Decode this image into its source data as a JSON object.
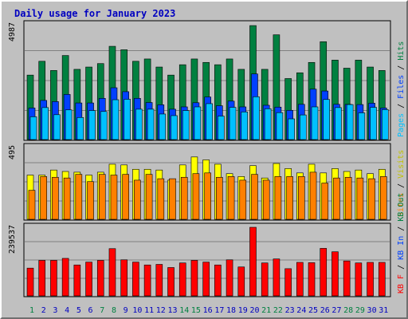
{
  "page": {
    "title": "Daily usage for January 2023"
  },
  "colors": {
    "pages": "#00c0ff",
    "files": "#0040ff",
    "hits": "#008040",
    "sites": "#ff8000",
    "visits": "#ffff00",
    "kb": "#ff0000",
    "label_pages": "#00c0ff",
    "label_files": "#0040ff",
    "label_hits": "#008040",
    "label_sites": "#ff8000",
    "label_visits": "#c0c000",
    "label_kbf": "#ff0000",
    "label_kbin": "#0040ff",
    "label_kbout": "#008040",
    "weekend_day": "#008040",
    "weekday": "#0000c0"
  },
  "chart_data": [
    {
      "type": "bar",
      "panel": "top",
      "ymax_label": "4987",
      "ylim": [
        0,
        4987
      ],
      "legend": [
        "Pages",
        "Files",
        "Hits"
      ],
      "categories": [
        "1",
        "2",
        "3",
        "4",
        "5",
        "6",
        "7",
        "8",
        "9",
        "10",
        "11",
        "12",
        "13",
        "14",
        "15",
        "16",
        "17",
        "18",
        "19",
        "20",
        "21",
        "22",
        "23",
        "24",
        "25",
        "26",
        "27",
        "28",
        "29",
        "30",
        "31"
      ],
      "weekend": [
        true,
        false,
        false,
        false,
        false,
        false,
        true,
        true,
        false,
        false,
        false,
        false,
        false,
        true,
        true,
        false,
        false,
        false,
        false,
        false,
        true,
        true,
        false,
        false,
        false,
        false,
        false,
        true,
        true,
        false,
        false
      ],
      "series": [
        {
          "name": "Hits",
          "values": [
            2800,
            3400,
            3000,
            3650,
            3050,
            3150,
            3300,
            4050,
            3900,
            3400,
            3500,
            3150,
            2800,
            3250,
            3500,
            3350,
            3250,
            3500,
            3050,
            4950,
            3050,
            4550,
            2650,
            2900,
            3350,
            4250,
            3450,
            3100,
            3450,
            3150,
            3000
          ]
        },
        {
          "name": "Files",
          "values": [
            1370,
            1700,
            1650,
            1960,
            1590,
            1590,
            1790,
            2250,
            2080,
            1790,
            1610,
            1510,
            1320,
            1420,
            1600,
            1850,
            1470,
            1670,
            1420,
            2850,
            1490,
            1410,
            1270,
            1530,
            2190,
            2110,
            1530,
            1530,
            1520,
            1580,
            1370
          ]
        },
        {
          "name": "Pages",
          "values": [
            990,
            1390,
            1080,
            1290,
            960,
            1260,
            1220,
            1730,
            1750,
            1320,
            1320,
            1110,
            1040,
            1260,
            1420,
            1560,
            1020,
            1400,
            1200,
            1860,
            1340,
            1170,
            900,
            1070,
            1420,
            1740,
            1390,
            1520,
            1160,
            1400,
            1300
          ]
        }
      ]
    },
    {
      "type": "bar",
      "panel": "middle",
      "ymax_label": "495",
      "ylim": [
        0,
        495
      ],
      "legend": [
        "Sites",
        "Visits"
      ],
      "categories": [
        "1",
        "2",
        "3",
        "4",
        "5",
        "6",
        "7",
        "8",
        "9",
        "10",
        "11",
        "12",
        "13",
        "14",
        "15",
        "16",
        "17",
        "18",
        "19",
        "20",
        "21",
        "22",
        "23",
        "24",
        "25",
        "26",
        "27",
        "28",
        "29",
        "30",
        "31"
      ],
      "series": [
        {
          "name": "Visits",
          "values": [
            305,
            305,
            340,
            330,
            325,
            305,
            325,
            380,
            375,
            345,
            345,
            340,
            270,
            375,
            430,
            410,
            380,
            315,
            295,
            370,
            285,
            385,
            350,
            320,
            380,
            320,
            350,
            330,
            340,
            315,
            345
          ]
        },
        {
          "name": "Sites",
          "values": [
            200,
            295,
            290,
            285,
            310,
            260,
            310,
            305,
            310,
            270,
            310,
            280,
            280,
            290,
            315,
            320,
            290,
            295,
            270,
            310,
            270,
            295,
            295,
            295,
            325,
            250,
            285,
            290,
            285,
            280,
            295
          ]
        }
      ]
    },
    {
      "type": "bar",
      "panel": "bottom",
      "ymax_label": "239537",
      "ylim": [
        0,
        239537
      ],
      "legend": [
        "KB F",
        "KB In",
        "KB Out"
      ],
      "categories": [
        "1",
        "2",
        "3",
        "4",
        "5",
        "6",
        "7",
        "8",
        "9",
        "10",
        "11",
        "12",
        "13",
        "14",
        "15",
        "16",
        "17",
        "18",
        "19",
        "20",
        "21",
        "22",
        "23",
        "24",
        "25",
        "26",
        "27",
        "28",
        "29",
        "30",
        "31"
      ],
      "series": [
        {
          "name": "KB F",
          "values": [
            97000,
            124000,
            124000,
            131000,
            108000,
            118000,
            124000,
            165000,
            126000,
            118000,
            108000,
            110000,
            99000,
            115000,
            124000,
            118000,
            108000,
            126000,
            101000,
            239537,
            115000,
            129000,
            95000,
            117000,
            116000,
            166000,
            154000,
            122000,
            115000,
            117000,
            117000
          ]
        }
      ]
    }
  ]
}
